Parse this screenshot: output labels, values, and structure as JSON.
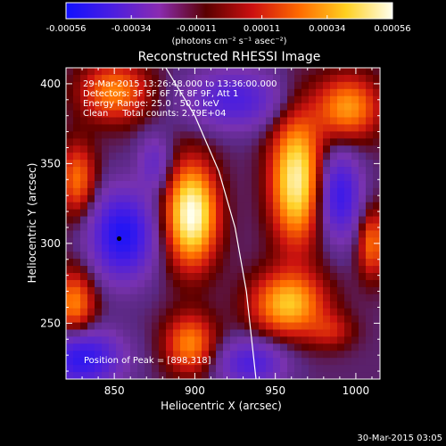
{
  "colorbar": {
    "tick_labels": [
      "-0.00056",
      "-0.00034",
      "-0.00011",
      "0.00011",
      "0.00034",
      "0.00056"
    ],
    "units": "(photons cm⁻² s⁻¹ asec⁻²)",
    "range": [
      -0.00056,
      0.00056
    ],
    "colors": [
      "#1010ff",
      "#4b1ee0",
      "#8a2bb0",
      "#5a0000",
      "#cc1010",
      "#ff6a00",
      "#ffd020",
      "#ffffee"
    ]
  },
  "chart_data": {
    "type": "heatmap",
    "title": "Reconstructed RHESSI Image",
    "xlabel": "Heliocentric X (arcsec)",
    "ylabel": "Heliocentric Y (arcsec)",
    "xlim": [
      820,
      1015
    ],
    "ylim": [
      215,
      410
    ],
    "xticks": [
      850,
      900,
      950,
      1000
    ],
    "yticks": [
      250,
      300,
      350,
      400
    ],
    "info_lines": [
      "29-Mar-2015 13:26:48.000 to 13:36:00.000",
      "Detectors: 3F 5F 6F 7F 8F 9F, Att 1",
      "Energy Range: 25.0 - 50.0 keV",
      "Clean     Total counts: 2.79E+04"
    ],
    "peak_label": "Position of Peak = [898,318]",
    "peak": [
      898,
      318
    ],
    "marked_point": [
      853,
      303
    ],
    "limb": [
      [
        882,
        410
      ],
      [
        900,
        380
      ],
      [
        915,
        345
      ],
      [
        925,
        310
      ],
      [
        932,
        270
      ],
      [
        938,
        215
      ]
    ],
    "sources": [
      {
        "x": 898,
        "y": 318,
        "sx": 11,
        "sy": 22,
        "a": 1.0
      },
      {
        "x": 963,
        "y": 340,
        "sx": 11,
        "sy": 28,
        "a": 0.9
      },
      {
        "x": 995,
        "y": 385,
        "sx": 14,
        "sy": 14,
        "a": 0.6
      },
      {
        "x": 850,
        "y": 395,
        "sx": 15,
        "sy": 13,
        "a": 0.55
      },
      {
        "x": 827,
        "y": 340,
        "sx": 8,
        "sy": 16,
        "a": 0.5
      },
      {
        "x": 825,
        "y": 262,
        "sx": 9,
        "sy": 15,
        "a": 0.55
      },
      {
        "x": 958,
        "y": 262,
        "sx": 16,
        "sy": 14,
        "a": 0.7
      },
      {
        "x": 897,
        "y": 237,
        "sx": 11,
        "sy": 13,
        "a": 0.55
      },
      {
        "x": 1010,
        "y": 300,
        "sx": 6,
        "sy": 15,
        "a": 0.5
      },
      {
        "x": 985,
        "y": 245,
        "sx": 10,
        "sy": 8,
        "a": 0.25
      },
      {
        "x": 855,
        "y": 305,
        "sx": 13,
        "sy": 18,
        "a": -0.9
      },
      {
        "x": 830,
        "y": 228,
        "sx": 16,
        "sy": 12,
        "a": -0.8
      },
      {
        "x": 935,
        "y": 225,
        "sx": 14,
        "sy": 10,
        "a": -0.55
      },
      {
        "x": 990,
        "y": 330,
        "sx": 9,
        "sy": 18,
        "a": -0.7
      },
      {
        "x": 925,
        "y": 390,
        "sx": 20,
        "sy": 12,
        "a": -0.55
      },
      {
        "x": 875,
        "y": 350,
        "sx": 7,
        "sy": 12,
        "a": -0.35
      }
    ]
  },
  "footer": {
    "timestamp": "30-Mar-2015 03:05"
  }
}
